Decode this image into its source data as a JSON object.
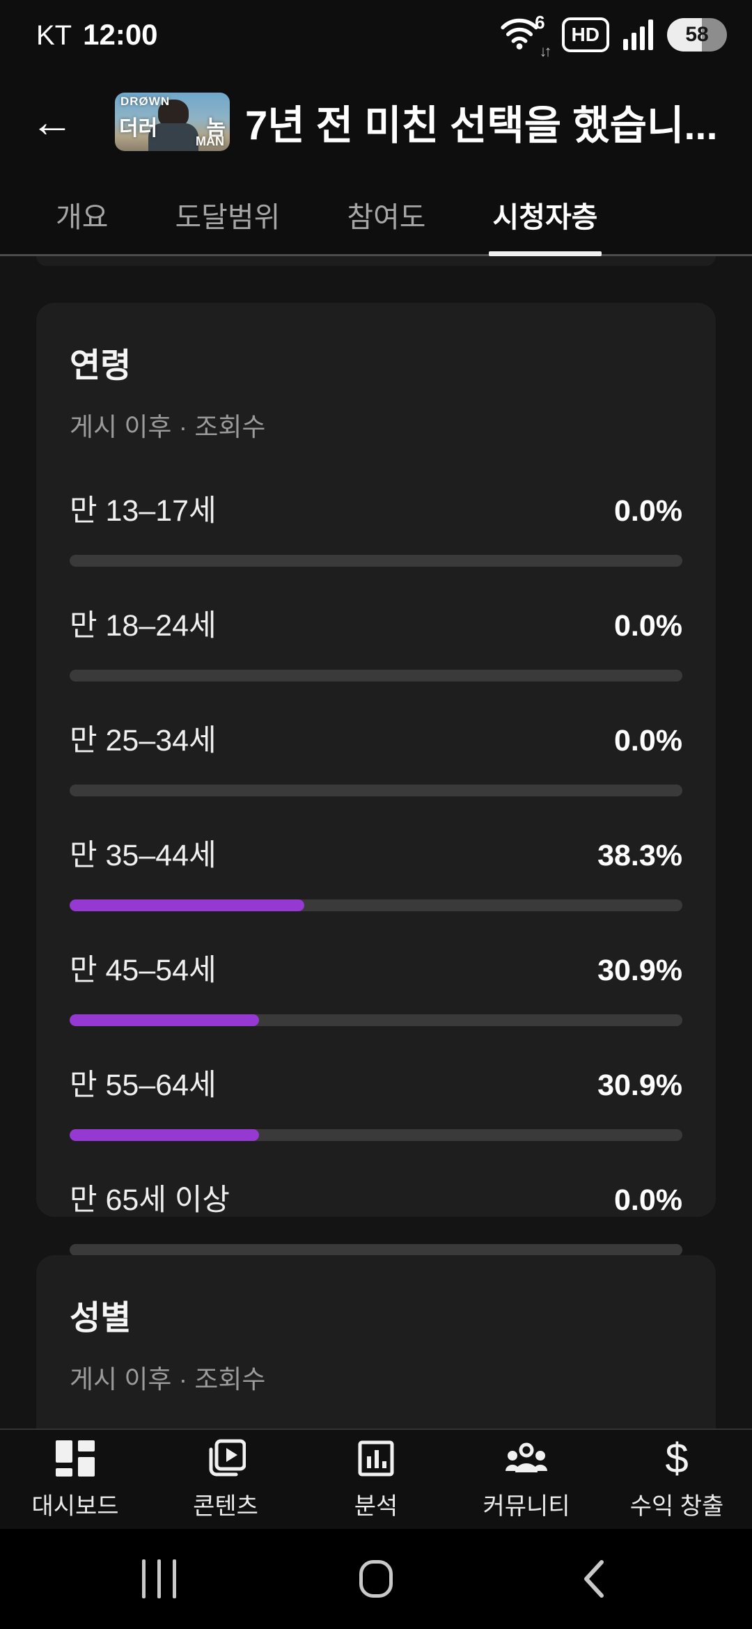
{
  "status_bar": {
    "carrier": "KT",
    "time": "12:00",
    "wifi_generation": "6",
    "wifi_arrows": "↓↑",
    "volte_badge": "HD",
    "battery_level": "58"
  },
  "icons": {
    "back_arrow": "←",
    "dollar": "$"
  },
  "header": {
    "title": "7년 전 미친 선택을 했습니...",
    "thumbnail_text": {
      "top_left": "DRØWN",
      "center_left": "더러",
      "center_right": "놈",
      "bottom_right": "MAN"
    }
  },
  "tabs": {
    "items": [
      {
        "label": "개요",
        "active": false
      },
      {
        "label": "도달범위",
        "active": false
      },
      {
        "label": "참여도",
        "active": false
      },
      {
        "label": "시청자층",
        "active": true
      }
    ]
  },
  "age_card": {
    "title": "연령",
    "subtitle": "게시 이후 · 조회수",
    "rows": [
      {
        "label": "만 13–17세",
        "value": "0.0%",
        "pct": 0
      },
      {
        "label": "만 18–24세",
        "value": "0.0%",
        "pct": 0
      },
      {
        "label": "만 25–34세",
        "value": "0.0%",
        "pct": 0
      },
      {
        "label": "만 35–44세",
        "value": "38.3%",
        "pct": 38.3
      },
      {
        "label": "만 45–54세",
        "value": "30.9%",
        "pct": 30.9
      },
      {
        "label": "만 55–64세",
        "value": "30.9%",
        "pct": 30.9
      },
      {
        "label": "만 65세 이상",
        "value": "0.0%",
        "pct": 0
      }
    ]
  },
  "gender_card": {
    "title": "성별",
    "subtitle": "게시 이후 · 조회수"
  },
  "bottom_nav": {
    "items": [
      {
        "label": "대시보드"
      },
      {
        "label": "콘텐츠"
      },
      {
        "label": "분석"
      },
      {
        "label": "커뮤니티"
      },
      {
        "label": "수익 창출"
      }
    ]
  },
  "colors": {
    "accent_purple": "#9539d2",
    "bar_track": "#3a3a3a",
    "card_background": "#1e1e1e"
  },
  "chart_data": {
    "type": "bar",
    "orientation": "horizontal",
    "title": "연령",
    "subtitle": "게시 이후 · 조회수",
    "categories": [
      "만 13–17세",
      "만 18–24세",
      "만 25–34세",
      "만 35–44세",
      "만 45–54세",
      "만 55–64세",
      "만 65세 이상"
    ],
    "values": [
      0.0,
      0.0,
      0.0,
      38.3,
      30.9,
      30.9,
      0.0
    ],
    "unit": "%",
    "xlim": [
      0,
      100
    ]
  }
}
